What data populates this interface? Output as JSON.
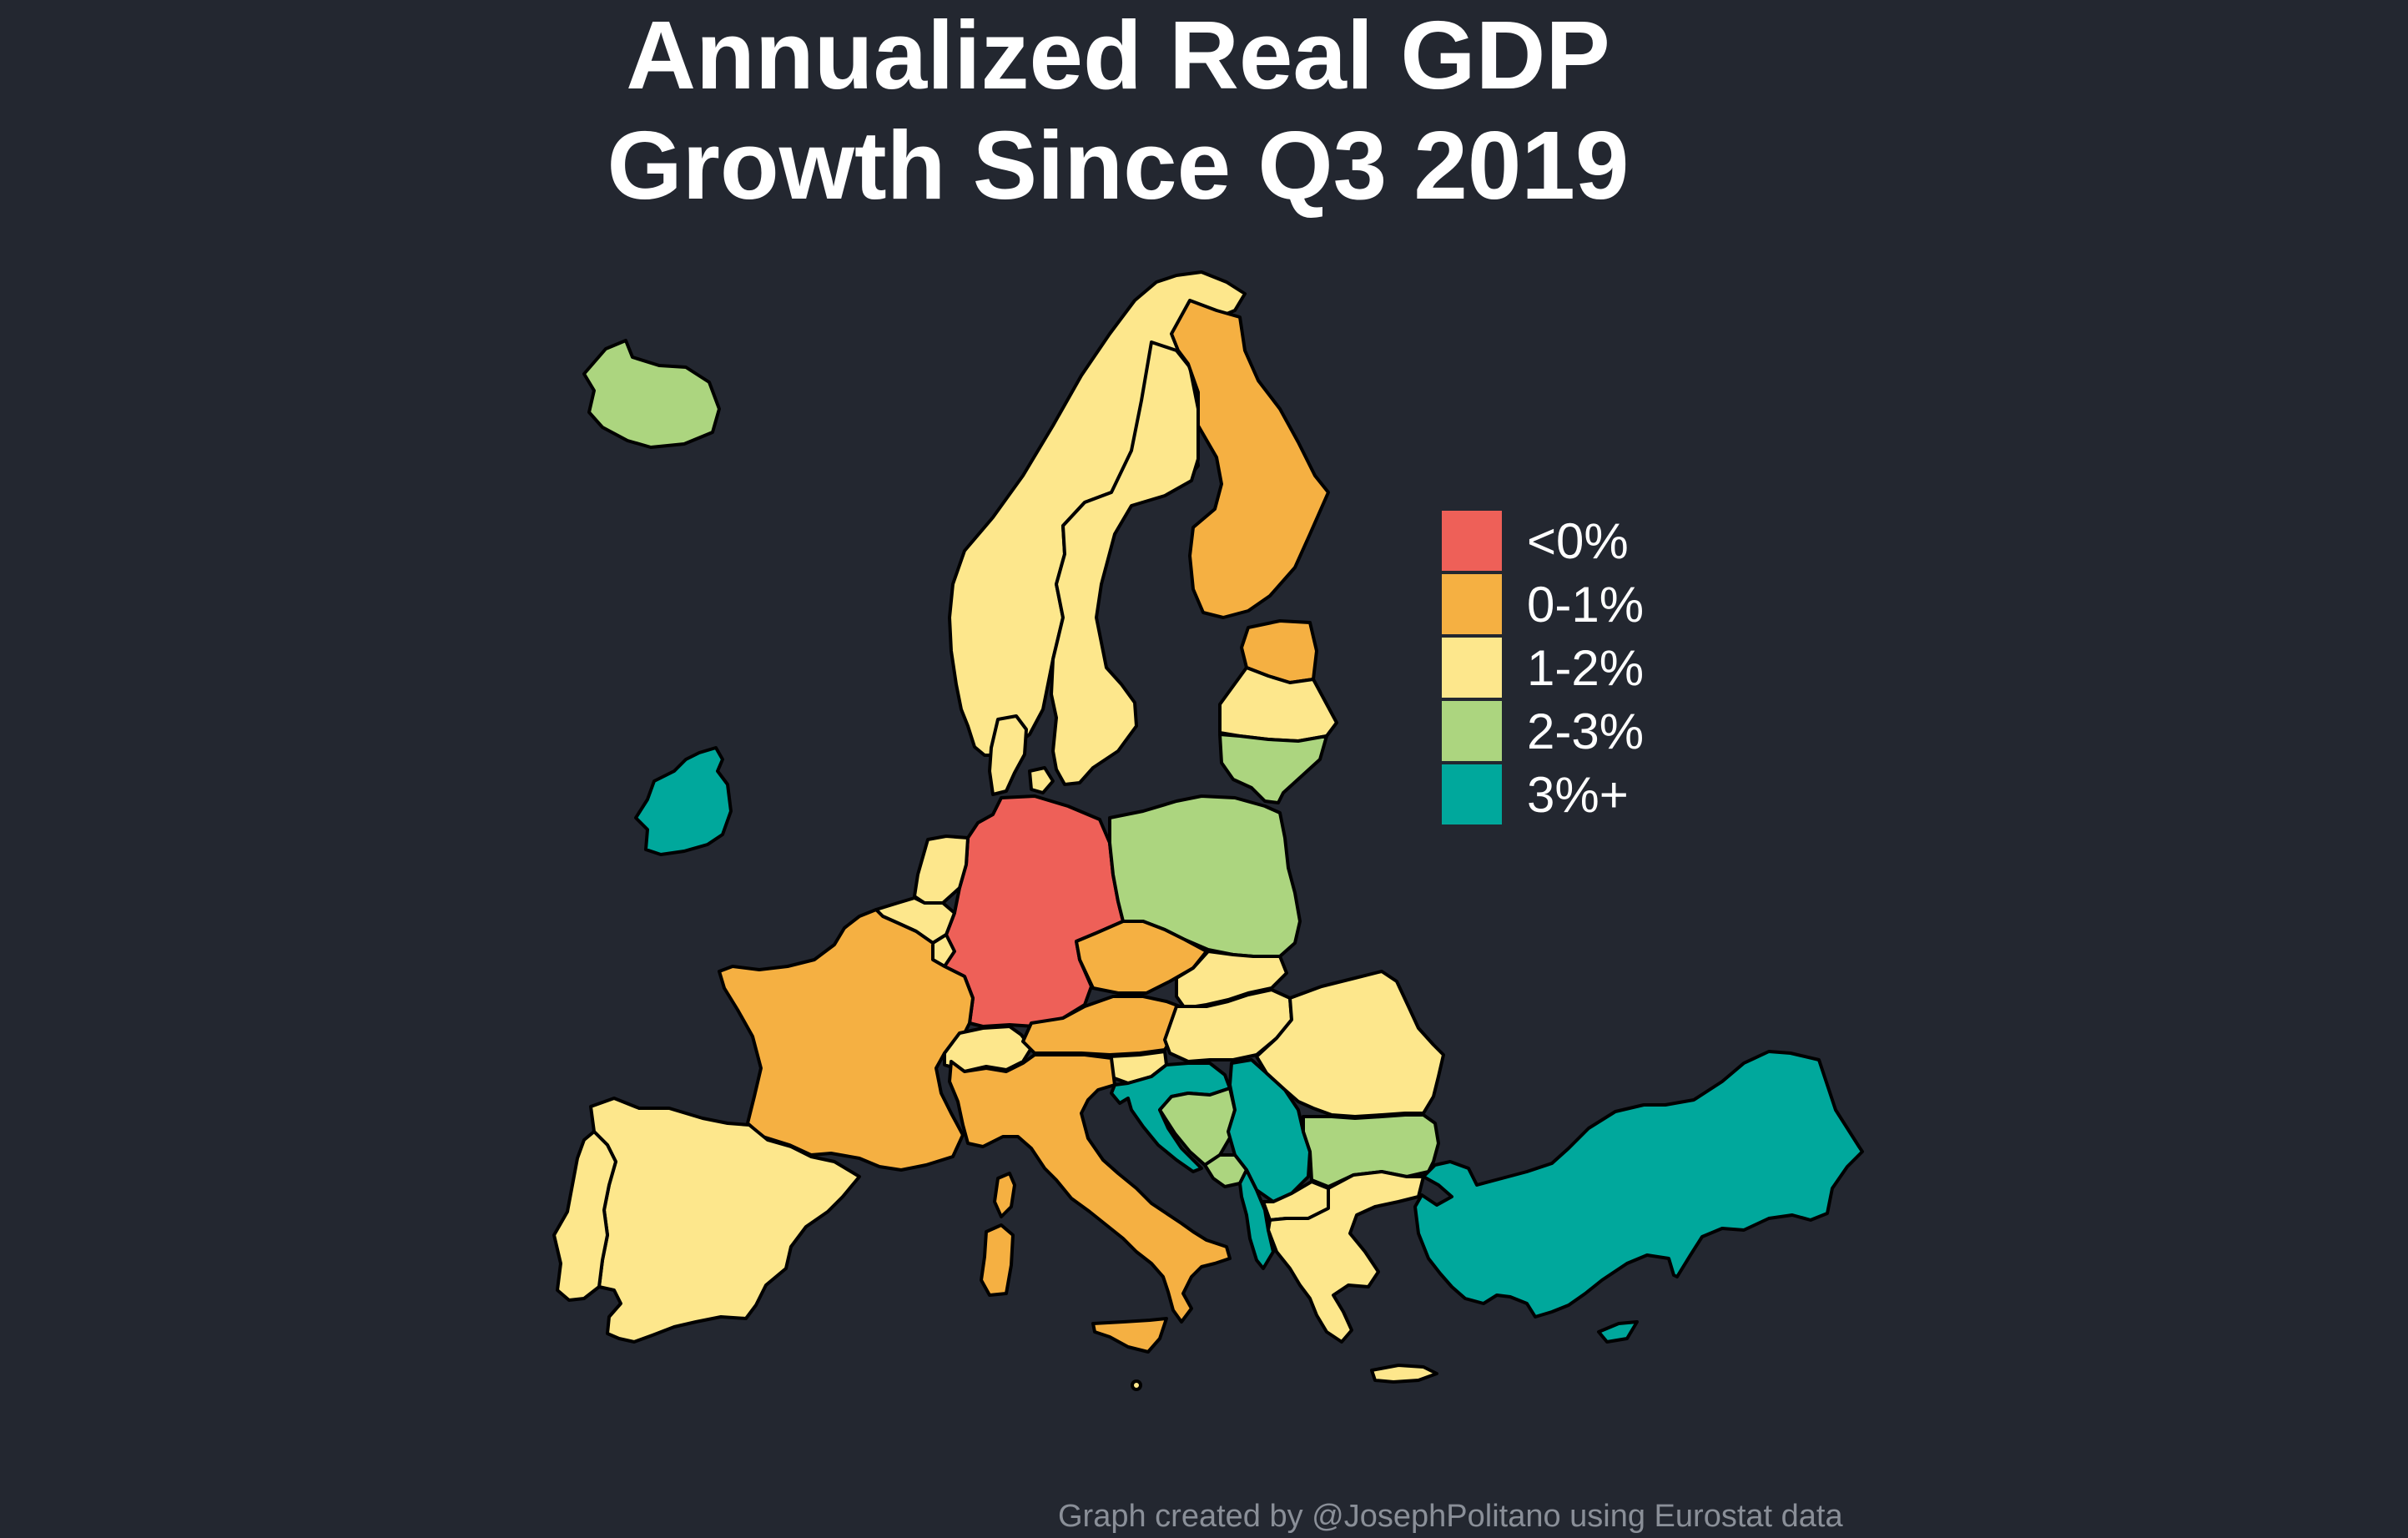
{
  "title_lines": [
    "Annualized Real GDP",
    "Growth Since Q3 2019"
  ],
  "caption": "Graph created by @JosephPolitano using Eurostat data",
  "legend": [
    {
      "label": "<0%",
      "color": "#ee6058"
    },
    {
      "label": "0-1%",
      "color": "#f5b042"
    },
    {
      "label": "1-2%",
      "color": "#fde78c"
    },
    {
      "label": "2-3%",
      "color": "#acd57f"
    },
    {
      "label": "3%+",
      "color": "#00a89c"
    }
  ],
  "map_data": {
    "regions": [
      {
        "name": "Iceland",
        "category": "2-3%"
      },
      {
        "name": "Ireland",
        "category": "3%+"
      },
      {
        "name": "Norway",
        "category": "1-2%"
      },
      {
        "name": "Sweden",
        "category": "1-2%"
      },
      {
        "name": "Finland",
        "category": "0-1%"
      },
      {
        "name": "Estonia",
        "category": "0-1%"
      },
      {
        "name": "Latvia",
        "category": "1-2%"
      },
      {
        "name": "Lithuania",
        "category": "2-3%"
      },
      {
        "name": "Denmark",
        "category": "1-2%"
      },
      {
        "name": "Germany",
        "category": "<0%"
      },
      {
        "name": "Poland",
        "category": "2-3%"
      },
      {
        "name": "Netherlands",
        "category": "1-2%"
      },
      {
        "name": "Belgium",
        "category": "1-2%"
      },
      {
        "name": "Luxembourg",
        "category": "1-2%"
      },
      {
        "name": "France",
        "category": "0-1%"
      },
      {
        "name": "Spain",
        "category": "1-2%"
      },
      {
        "name": "Portugal",
        "category": "1-2%"
      },
      {
        "name": "Switzerland",
        "category": "1-2%"
      },
      {
        "name": "Italy",
        "category": "0-1%"
      },
      {
        "name": "Austria",
        "category": "0-1%"
      },
      {
        "name": "Czechia",
        "category": "0-1%"
      },
      {
        "name": "Slovakia",
        "category": "1-2%"
      },
      {
        "name": "Hungary",
        "category": "1-2%"
      },
      {
        "name": "Slovenia",
        "category": "1-2%"
      },
      {
        "name": "Croatia",
        "category": "3%+"
      },
      {
        "name": "Bosnia and Herzegovina",
        "category": "2-3%"
      },
      {
        "name": "Serbia",
        "category": "3%+"
      },
      {
        "name": "Montenegro",
        "category": "2-3%"
      },
      {
        "name": "Albania",
        "category": "3%+"
      },
      {
        "name": "North Macedonia",
        "category": "1-2%"
      },
      {
        "name": "Romania",
        "category": "1-2%"
      },
      {
        "name": "Bulgaria",
        "category": "2-3%"
      },
      {
        "name": "Greece",
        "category": "1-2%"
      },
      {
        "name": "Turkey",
        "category": "3%+"
      },
      {
        "name": "Cyprus",
        "category": "3%+"
      },
      {
        "name": "Malta",
        "category": "1-2%"
      }
    ]
  }
}
